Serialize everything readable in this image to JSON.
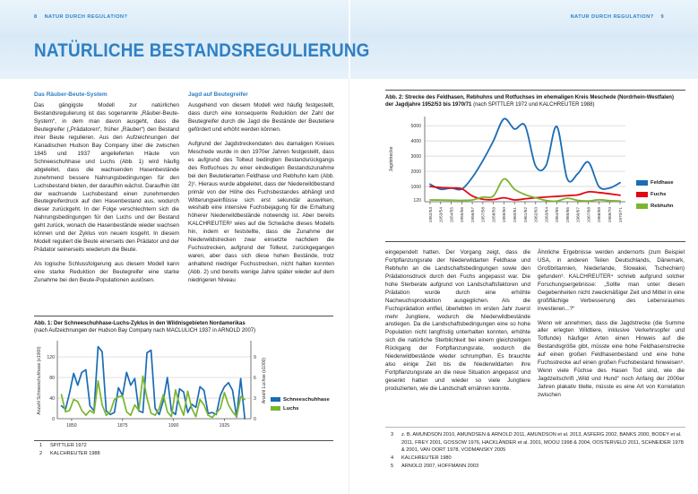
{
  "header": {
    "left_page_number": "8",
    "left_title": "NATUR DURCH REGULATION?",
    "right_title": "NATUR DURCH REGULATION?",
    "right_page_number": "9"
  },
  "page_title": "NATÜRLICHE BESTANDSREGULIERUNG",
  "left_page": {
    "col1": {
      "heading": "Das Räuber-Beute-System",
      "para1": "Das gängigste Modell zur natürlichen Bestandsregulierung ist das sogenannte „Räuber-Beute-System“, in dem man davon ausgeht, dass die Beutegreifer („Prädatoren“, früher „Räuber“) den Bestand ihrer Beute regulieren. Aus den Aufzeichnungen der Kanadischen Hudson Bay Company über die zwischen 1845 und 1937 angelieferten Häute von Schneeschuhhase und Luchs (Abb. 1) wird häufig abgeleitet, dass die wachsenden Hasenbestände zunehmend bessere Nahrungsbedingungen für den Luchsbestand bieten, der daraufhin wächst. Daraufhin übt der wachsende Luchsbestand einen zunehmenden Beutegreiferdruck auf den Hasenbestand aus, wodurch dieser zurückgeht. In der Folge verschlechtern sich die Nahrungsbedingungen für den Luchs und der Bestand geht zurück, wonach die Hasenbestände wieder wachsen können und der Zyklus von neuem losgeht. In diesem Modell reguliert die Beute einerseits den Prädator und der Prädator seinerseits wiederum die Beute.",
      "para2": "Als logische Schlussfolgerung aus diesem Modell kann eine starke Reduktion der Beutegreifer eine starke Zunahme bei den Beute-Populationen auslösen."
    },
    "col2": {
      "heading": "Jagd auf Beutegreifer",
      "para1": "Ausgehend von diesem Modell wird häufig festgestellt, dass durch eine konsequente Reduktion der Zahl der Beutegreifer durch die Jagd die Bestände der Beutetiere gefördert und erhöht werden können.",
      "para2": "Aufgrund der Jagdstreckendaten des damaligen Kreises Meschede wurde in den 1970er Jahren festgestellt, dass es aufgrund des Tollwut bedingten Bestandsrückgangs des Rotfuchses zu einer eindeutigen Bestandszunahme bei den Beutetierarten Feldhase und Rebhuhn kam (Abb. 2)¹. Hieraus wurde abgeleitet, dass der Niederwildbestand primär von der Höhe des Fuchsbestandes abhängt und Witterungseinflüsse sich erst sekundär auswirken, weshalb eine intensive Fuchsbejagung für die Erhaltung höherer Niederwildbestände notwendig ist. Aber bereits KALCHREUTER² wies auf die Schwäche dieses Modells hin, indem er feststellte, dass die Zunahme der Niederwildstrecken zwar einsetzte nachdem die Fuchsstrecken, aufgrund der Tollwut, zurückgegangen waren, aber dass sich diese hohen Bestände, trotz anhaltend niedriger Fuchsstrecken, nicht halten konnten (Abb. 2) und bereits wenige Jahre später wieder auf dem niedrigeren Niveau"
    }
  },
  "right_page": {
    "col1": {
      "para1": "eingependelt hatten. Der Vorgang zeigt, dass die Fortpflanzungsrate der Niederwildarten Feldhase und Rebhuhn an die Landschaftsbedingungen sowie den Prädationsdruck durch den Fuchs angepasst war. Die hohe Sterberate aufgrund von Landschaftsfaktoren und Prädation wurde durch eine erhöhte Nachwuchsproduktion ausgeglichen. Als die Fuchsprädation entfiel, überlebten im ersten Jahr zuerst mehr Jungtiere, wodurch die Niederwildbestände anstiegen. Da die Landschaftsbedingungen eine so hohe Population nicht langfristig unterhalten konnten, erhöhte sich die natürliche Sterblichkeit bei einem gleichzeitigen Rückgang der Fortpflanzungsrate, wodurch die Niederwildbestände wieder schrumpften. Es brauchte also einige Zeit bis die Niederwildarten ihre Fortpflanzungsrate an die neue Situation angepasst und gesenkt hatten und wieder so viele Jungtiere produzierten, wie die Landschaft ernähren konnte."
    },
    "col2": {
      "para1": "Ähnliche Ergebnisse werden andernorts (zum Beispiel USA, in anderen Teilen Deutschlands, Dänemark, Großbritannien, Niederlande, Slowakei, Tschechien) gefunden³. KALCHREUTER⁴ schrieb aufgrund solcher Forschungsergebnisse: „Sollte man unter diesen Gegebenheiten nicht zweckmäßiger Zeit und Mittel in eine großflächige Verbesserung des Lebensraumes investieren...?“",
      "para2": "Wenn wir annehmen, dass die Jagdstrecke (die Summe aller erlegten Wildtiere, inklusive Verkehrsopfer und Totfunde) häufiger Arten einen Hinweis auf die Bestandsgröße gibt, müsste eine hohe Feldhasenstrecke auf einen großen Feldhasenbestand und eine hohe Fuchsstrecke auf einen großen Fuchsbestand hinweisen⁵. Wenn viele Füchse des Hasen Tod sind, wie die Jagdzeitschrift „Wild und Hund“ noch Anfang der 2000er Jahren plakativ titelte, müsste es eine Art von Korrelation zwischen"
    }
  },
  "figure1": {
    "caption_bold": "Abb. 1: Der Schneeschuhhase-Luchs-Zyklus in den Wildnisgebieten Nordamerikas",
    "caption_rest": "(nach Aufzeichnungen der Hudson Bay Company nach MACLULICH 1937 in ARNOLD 2007)"
  },
  "figure2": {
    "caption_line1": "Abb. 2: Strecke des Feldhasen, Rebhuhns und Rotfuchses im ehemaligen Kreis Meschede (Nordrhein-Westfalen)",
    "caption_line2_bold": "der Jagdjahre 1952/53 bis 1970/71",
    "caption_line2_rest": " (nach SPITTLER 1972 und KALCHREUTER 1988)"
  },
  "footnotes_left": [
    {
      "n": "1",
      "t": "SPITTLER 1972"
    },
    {
      "n": "2",
      "t": "KALCHREUTER 1988"
    }
  ],
  "footnotes_right": [
    {
      "n": "3",
      "t": "z. B. AMUNDSON 2010, AMUNDSEN & ARNOLD 2011, AMUNDSON et al. 2013, ASFERG 2002, BANKS 2000, BODEY et al. 2011, FREY 2001, GOSSOW 1976, HACKLÄNDER et al. 2001, MOOIJ 1998 & 2004, OOSTERVELD 2011, SCHNEIDER 1978 & 2001, VAN OORT 1978, VODMANSKY 2005"
    },
    {
      "n": "4",
      "t": "KALCHREUTER 1980"
    },
    {
      "n": "5",
      "t": "ARNOLD 2007, HOFFMANN 2003"
    }
  ],
  "colors": {
    "accent_blue": "#2f80c4",
    "series_blue": "#1a6cb5",
    "series_green": "#7ab62c",
    "series_red": "#e30613",
    "band_blue": "#d9eaf7"
  },
  "chart_data": [
    {
      "type": "line",
      "title": "Der Schneeschuhhase-Luchs-Zyklus in den Wildnisgebieten Nordamerikas",
      "x": [
        1845,
        1847,
        1849,
        1851,
        1853,
        1855,
        1857,
        1859,
        1861,
        1863,
        1865,
        1867,
        1869,
        1871,
        1873,
        1875,
        1877,
        1879,
        1881,
        1883,
        1885,
        1887,
        1889,
        1891,
        1893,
        1895,
        1897,
        1899,
        1901,
        1903,
        1905,
        1907,
        1909,
        1911,
        1913,
        1915,
        1917,
        1919,
        1921,
        1923,
        1925,
        1927,
        1929,
        1931,
        1933,
        1935
      ],
      "xlim": [
        1843,
        1938
      ],
      "xticks": [
        1850,
        1875,
        1900,
        1925
      ],
      "ylabel_left": "Anzahl Schneeschuhhase (x1000)",
      "ylabel_right": "Anzahl Luchse (x1000)",
      "yticks_left": [
        0,
        40,
        80,
        120
      ],
      "yticks_right": [
        0,
        3,
        6,
        9
      ],
      "ylim_left": [
        0,
        148
      ],
      "right_units_per_left_unit": 0.075,
      "grid": true,
      "legend_position": "right",
      "series": [
        {
          "name": "Schneeschuhhase",
          "color": "#1a6cb5",
          "axis": "left",
          "values": [
            25,
            18,
            50,
            88,
            65,
            90,
            95,
            25,
            15,
            140,
            130,
            15,
            8,
            12,
            60,
            45,
            90,
            65,
            78,
            15,
            12,
            128,
            133,
            20,
            8,
            35,
            80,
            15,
            8,
            58,
            52,
            12,
            28,
            22,
            62,
            55,
            10,
            12,
            8,
            45,
            62,
            70,
            55,
            3,
            78,
            0
          ]
        },
        {
          "name": "Luchs",
          "color": "#7ab62c",
          "axis": "right",
          "values": [
            3.5,
            1.0,
            1.2,
            2.8,
            2.5,
            1.2,
            0.5,
            1.2,
            0.8,
            5.5,
            2.0,
            0.5,
            1.0,
            2.8,
            3.2,
            3.3,
            1.0,
            0.5,
            2.0,
            1.2,
            6.2,
            3.0,
            0.8,
            0.5,
            1.5,
            3.5,
            1.0,
            0.3,
            4.2,
            2.0,
            0.5,
            4.0,
            1.5,
            0.3,
            2.8,
            2.0,
            0.5,
            0.2,
            0.8,
            1.5,
            3.8,
            2.0,
            1.0,
            0.3,
            3.2,
            2.8
          ]
        }
      ]
    },
    {
      "type": "line",
      "title": "Strecke des Feldhasen, Rebhuhns und Rotfuchses im ehemaligen Kreis Meschede",
      "categories": [
        "1952/53",
        "1953/54",
        "1954/55",
        "1955/56",
        "1956/57",
        "1957/58",
        "1958/59",
        "1959/60",
        "1960/61",
        "1961/62",
        "1962/63",
        "1963/64",
        "1964/65",
        "1965/66",
        "1966/67",
        "1967/68",
        "1968/69",
        "1969/70",
        "1970/71"
      ],
      "ylabel": "Jagdstrecke",
      "yticks": [
        120,
        1000,
        2000,
        3000,
        4000,
        5000
      ],
      "ylim": [
        0,
        5600
      ],
      "grid": true,
      "legend_position": "right",
      "smooth": true,
      "series": [
        {
          "name": "Feldhase",
          "color": "#1a6cb5",
          "values": [
            1150,
            820,
            900,
            830,
            1600,
            2700,
            4000,
            5450,
            4780,
            5000,
            2350,
            2400,
            4950,
            1500,
            1850,
            2600,
            1000,
            900,
            1250
          ]
        },
        {
          "name": "Fuchs",
          "color": "#e30613",
          "values": [
            1000,
            930,
            900,
            850,
            380,
            160,
            140,
            260,
            120,
            190,
            260,
            310,
            350,
            400,
            450,
            650,
            600,
            520,
            430
          ]
        },
        {
          "name": "Rebhuhn",
          "color": "#7ab62c",
          "values": [
            120,
            110,
            100,
            90,
            120,
            300,
            380,
            1500,
            820,
            470,
            260,
            80,
            40,
            230,
            90,
            50,
            130,
            70,
            50
          ]
        }
      ]
    }
  ]
}
